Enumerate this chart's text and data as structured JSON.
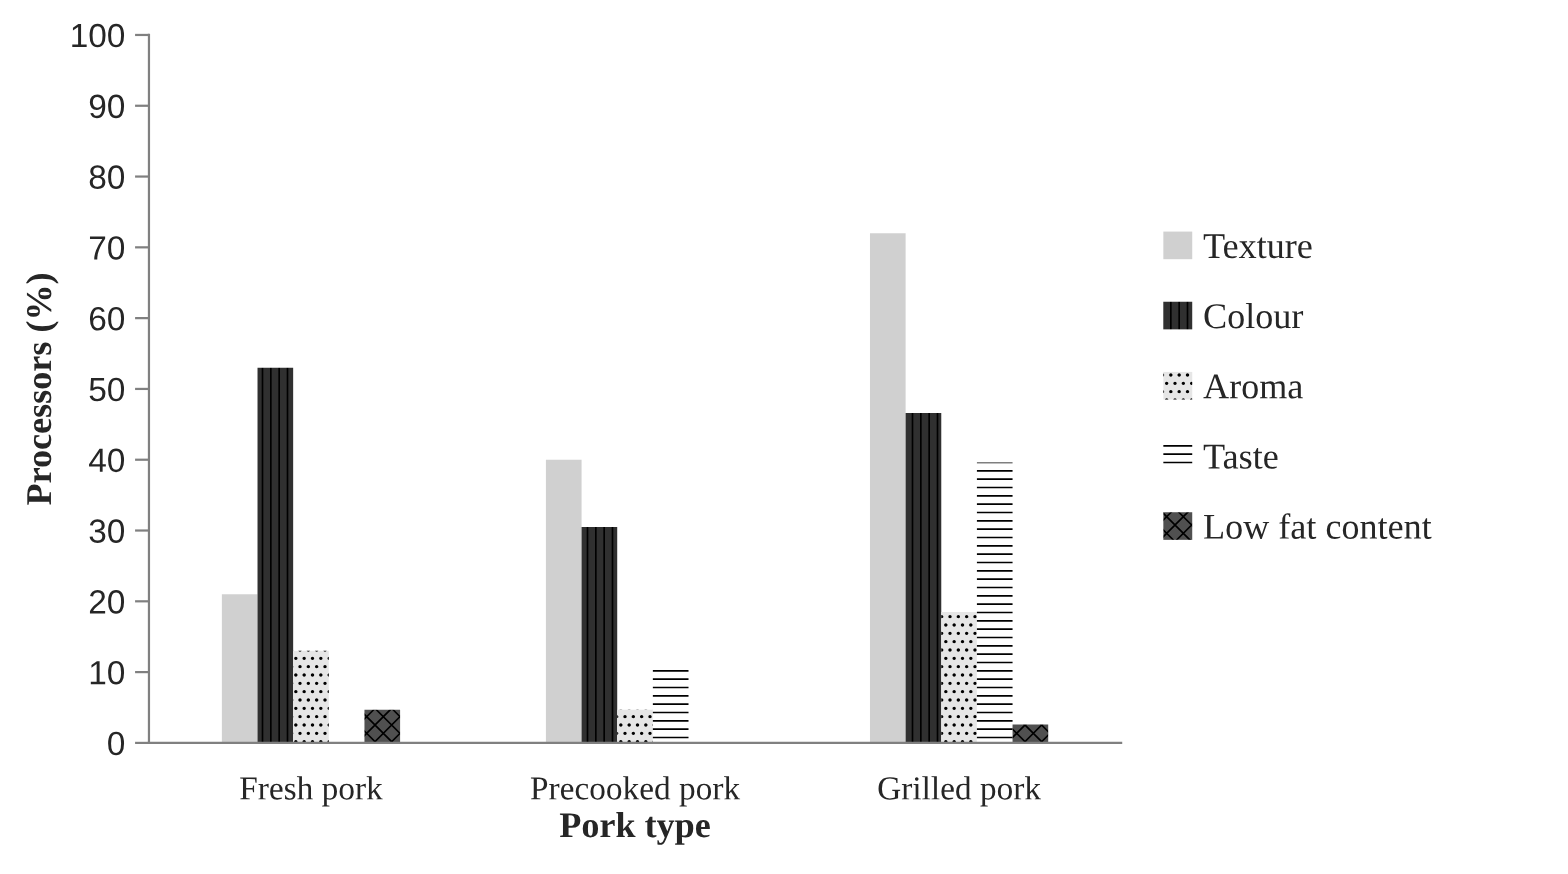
{
  "chart_data": {
    "type": "bar",
    "xlabel": "Pork type",
    "ylabel": "Processors (%)",
    "categories": [
      "Fresh pork",
      "Precooked pork",
      "Grilled pork"
    ],
    "series": [
      {
        "name": "Texture",
        "color": "#d0d0d0",
        "values": [
          21,
          40,
          72
        ]
      },
      {
        "name": "Colour",
        "color": "#303030",
        "values": [
          53,
          30.5,
          46.6
        ]
      },
      {
        "name": "Aroma",
        "color": "#e6e6e6",
        "values": [
          13,
          4.7,
          18.5
        ]
      },
      {
        "name": "Taste",
        "color": "#ffffff",
        "values": [
          0,
          11,
          39.6
        ]
      },
      {
        "name": "Low fat content",
        "color": "#505050",
        "values": [
          4.7,
          0,
          2.6
        ]
      }
    ],
    "ylim": [
      0,
      100
    ],
    "yticks": [
      0,
      10,
      20,
      30,
      40,
      50,
      60,
      70,
      80,
      90,
      100
    ],
    "grid": false,
    "legend": "right"
  }
}
